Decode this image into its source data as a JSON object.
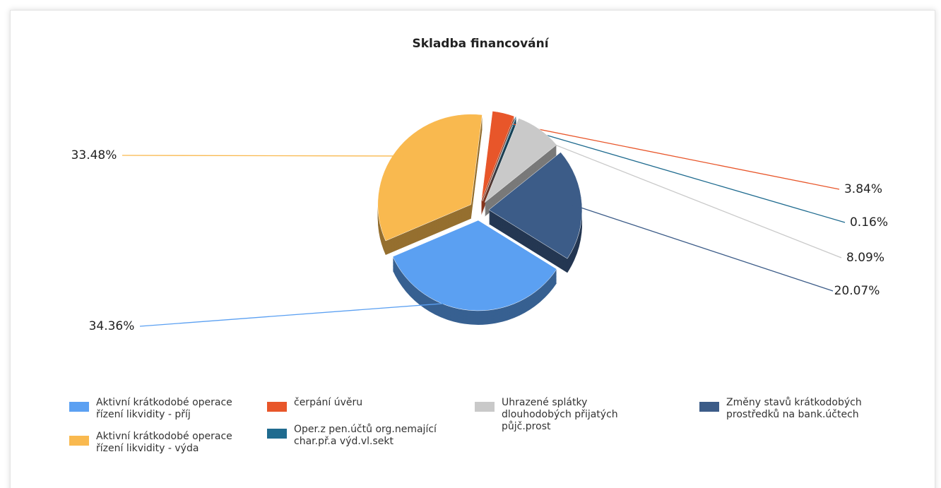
{
  "chart_data": {
    "type": "pie",
    "title": "Skladba financování",
    "categories": [
      "čerpání úvěru",
      "Oper.z pen.účtů org.nemající char.př.a výd.vl.sekt",
      "Uhrazené splátky dlouhodobých přijatých půjč.prost",
      "Změny stavů krátkodobých prostředků na bank.účtech",
      "Aktivní krátkodobé operace řízení likvidity - příj",
      "Aktivní krátkodobé operace řízení likvidity - výda"
    ],
    "values": [
      3.84,
      0.16,
      8.09,
      20.07,
      34.36,
      33.48
    ],
    "value_labels": [
      "3.84%",
      "0.16%",
      "8.09%",
      "20.07%",
      "34.36%",
      "33.48%"
    ],
    "colors": [
      "#e8562a",
      "#1f6b8f",
      "#c9c9c9",
      "#3c5c88",
      "#5ba0f2",
      "#f9b94f"
    ],
    "legend": "bottom"
  }
}
